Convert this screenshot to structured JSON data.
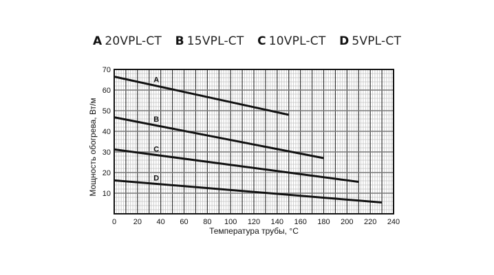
{
  "chart_data": {
    "type": "line",
    "title": "",
    "xlabel": "Температура трубы, °C",
    "ylabel": "Мощность обогрева, Вт/м",
    "xlim": [
      0,
      240
    ],
    "ylim": [
      0,
      70
    ],
    "x_ticks": [
      0,
      20,
      40,
      60,
      80,
      100,
      120,
      140,
      160,
      180,
      200,
      220,
      240
    ],
    "y_ticks": [
      10,
      20,
      30,
      40,
      50,
      60,
      70
    ],
    "grid": true,
    "legend_position": "top",
    "legend": [
      {
        "key": "A",
        "name": "20VPL-CT"
      },
      {
        "key": "B",
        "name": "15VPL-CT"
      },
      {
        "key": "C",
        "name": "10VPL-CT"
      },
      {
        "key": "D",
        "name": "5VPL-CT"
      }
    ],
    "series": [
      {
        "name": "A",
        "label_x": 35,
        "x": [
          0,
          150
        ],
        "values": [
          66.5,
          48
        ]
      },
      {
        "name": "B",
        "label_x": 35,
        "x": [
          0,
          180
        ],
        "values": [
          46.8,
          27
        ]
      },
      {
        "name": "C",
        "label_x": 35,
        "x": [
          0,
          210
        ],
        "values": [
          31.2,
          15.5
        ]
      },
      {
        "name": "D",
        "label_x": 35,
        "x": [
          0,
          230
        ],
        "values": [
          16.2,
          5.5
        ]
      }
    ]
  }
}
